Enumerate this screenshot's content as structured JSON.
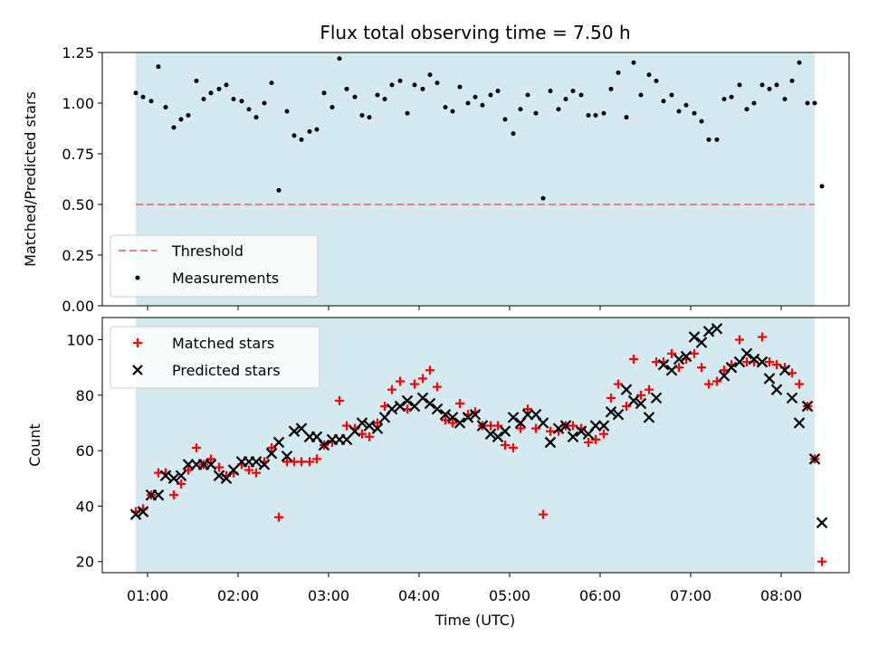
{
  "chart_data": [
    {
      "type": "scatter",
      "title": "Flux total observing time = 7.50 h",
      "xlabel": "",
      "ylabel": "Matched/Predicted stars",
      "ylim": [
        0,
        1.25
      ],
      "xlim_hours": [
        0.5,
        8.75
      ],
      "yticks": [
        "0.00",
        "0.25",
        "0.50",
        "0.75",
        "1.00",
        "1.25"
      ],
      "shaded_span_hours": [
        0.87,
        8.37
      ],
      "shade_color": "#d4eaf0",
      "threshold": {
        "name": "Threshold",
        "value": 0.5,
        "color": "#f08080"
      },
      "legend_placement": "lower-left",
      "series": [
        {
          "name": "Measurements",
          "marker": "dot",
          "color": "#000000",
          "points": [
            [
              0.87,
              1.05
            ],
            [
              0.95,
              1.03
            ],
            [
              1.04,
              1.01
            ],
            [
              1.12,
              1.18
            ],
            [
              1.2,
              0.98
            ],
            [
              1.29,
              0.88
            ],
            [
              1.37,
              0.92
            ],
            [
              1.45,
              0.94
            ],
            [
              1.54,
              1.11
            ],
            [
              1.62,
              1.02
            ],
            [
              1.7,
              1.05
            ],
            [
              1.79,
              1.07
            ],
            [
              1.87,
              1.09
            ],
            [
              1.95,
              1.02
            ],
            [
              2.04,
              1.01
            ],
            [
              2.12,
              0.97
            ],
            [
              2.2,
              0.93
            ],
            [
              2.29,
              1.0
            ],
            [
              2.37,
              1.1
            ],
            [
              2.45,
              0.57
            ],
            [
              2.54,
              0.96
            ],
            [
              2.62,
              0.84
            ],
            [
              2.7,
              0.82
            ],
            [
              2.79,
              0.86
            ],
            [
              2.87,
              0.87
            ],
            [
              2.95,
              1.05
            ],
            [
              3.04,
              0.98
            ],
            [
              3.12,
              1.22
            ],
            [
              3.2,
              1.07
            ],
            [
              3.29,
              1.03
            ],
            [
              3.37,
              0.94
            ],
            [
              3.45,
              0.93
            ],
            [
              3.54,
              1.04
            ],
            [
              3.62,
              1.02
            ],
            [
              3.7,
              1.09
            ],
            [
              3.79,
              1.11
            ],
            [
              3.87,
              0.95
            ],
            [
              3.95,
              1.09
            ],
            [
              4.04,
              1.07
            ],
            [
              4.12,
              1.14
            ],
            [
              4.2,
              1.1
            ],
            [
              4.29,
              0.98
            ],
            [
              4.37,
              0.96
            ],
            [
              4.45,
              1.08
            ],
            [
              4.54,
              1.0
            ],
            [
              4.62,
              1.03
            ],
            [
              4.7,
              0.99
            ],
            [
              4.79,
              1.04
            ],
            [
              4.87,
              1.06
            ],
            [
              4.95,
              0.92
            ],
            [
              5.04,
              0.85
            ],
            [
              5.12,
              0.97
            ],
            [
              5.2,
              1.04
            ],
            [
              5.29,
              0.95
            ],
            [
              5.37,
              0.53
            ],
            [
              5.45,
              1.06
            ],
            [
              5.54,
              0.97
            ],
            [
              5.62,
              1.02
            ],
            [
              5.7,
              1.06
            ],
            [
              5.79,
              1.04
            ],
            [
              5.87,
              0.94
            ],
            [
              5.95,
              0.94
            ],
            [
              6.04,
              0.95
            ],
            [
              6.12,
              1.07
            ],
            [
              6.2,
              1.15
            ],
            [
              6.29,
              0.93
            ],
            [
              6.37,
              1.2
            ],
            [
              6.45,
              1.04
            ],
            [
              6.54,
              1.14
            ],
            [
              6.62,
              1.11
            ],
            [
              6.7,
              1.01
            ],
            [
              6.79,
              1.04
            ],
            [
              6.87,
              0.96
            ],
            [
              6.95,
              0.99
            ],
            [
              7.04,
              0.95
            ],
            [
              7.12,
              0.91
            ],
            [
              7.2,
              0.82
            ],
            [
              7.29,
              0.82
            ],
            [
              7.37,
              1.02
            ],
            [
              7.45,
              1.03
            ],
            [
              7.54,
              1.09
            ],
            [
              7.62,
              0.97
            ],
            [
              7.7,
              1.0
            ],
            [
              7.79,
              1.09
            ],
            [
              7.87,
              1.07
            ],
            [
              7.95,
              1.09
            ],
            [
              8.04,
              1.02
            ],
            [
              8.12,
              1.11
            ],
            [
              8.2,
              1.2
            ],
            [
              8.29,
              1.0
            ],
            [
              8.37,
              1.0
            ],
            [
              8.45,
              0.59
            ]
          ]
        }
      ]
    },
    {
      "type": "scatter",
      "title": "",
      "xlabel": "Time (UTC)",
      "ylabel": "Count",
      "ylim": [
        16,
        108
      ],
      "yticks": [
        20,
        40,
        60,
        80,
        100
      ],
      "xticks": [
        "01:00",
        "02:00",
        "03:00",
        "04:00",
        "05:00",
        "06:00",
        "07:00",
        "08:00"
      ],
      "legend_placement": "upper-left",
      "series": [
        {
          "name": "Matched stars",
          "marker": "plus",
          "color": "#ff0000",
          "points": [
            [
              0.87,
              38
            ],
            [
              0.95,
              39
            ],
            [
              1.04,
              44
            ],
            [
              1.12,
              52
            ],
            [
              1.2,
              52
            ],
            [
              1.29,
              44
            ],
            [
              1.37,
              48
            ],
            [
              1.45,
              53
            ],
            [
              1.54,
              61
            ],
            [
              1.62,
              55
            ],
            [
              1.7,
              57
            ],
            [
              1.79,
              54
            ],
            [
              1.87,
              51
            ],
            [
              1.95,
              52
            ],
            [
              2.04,
              55
            ],
            [
              2.12,
              53
            ],
            [
              2.2,
              52
            ],
            [
              2.29,
              56
            ],
            [
              2.37,
              61
            ],
            [
              2.45,
              36
            ],
            [
              2.54,
              56
            ],
            [
              2.62,
              56
            ],
            [
              2.7,
              56
            ],
            [
              2.79,
              56
            ],
            [
              2.87,
              57
            ],
            [
              2.95,
              62
            ],
            [
              3.04,
              63
            ],
            [
              3.12,
              78
            ],
            [
              3.2,
              69
            ],
            [
              3.29,
              68
            ],
            [
              3.37,
              66
            ],
            [
              3.45,
              65
            ],
            [
              3.54,
              70
            ],
            [
              3.62,
              76
            ],
            [
              3.7,
              82
            ],
            [
              3.79,
              85
            ],
            [
              3.87,
              75
            ],
            [
              3.95,
              84
            ],
            [
              4.04,
              86
            ],
            [
              4.12,
              89
            ],
            [
              4.2,
              83
            ],
            [
              4.29,
              71
            ],
            [
              4.37,
              70
            ],
            [
              4.45,
              77
            ],
            [
              4.54,
              73
            ],
            [
              4.62,
              74
            ],
            [
              4.7,
              69
            ],
            [
              4.79,
              69
            ],
            [
              4.87,
              69
            ],
            [
              4.95,
              62
            ],
            [
              5.04,
              61
            ],
            [
              5.12,
              68
            ],
            [
              5.2,
              75
            ],
            [
              5.29,
              68
            ],
            [
              5.37,
              37
            ],
            [
              5.45,
              67
            ],
            [
              5.54,
              67
            ],
            [
              5.62,
              69
            ],
            [
              5.7,
              69
            ],
            [
              5.79,
              68
            ],
            [
              5.87,
              63
            ],
            [
              5.95,
              64
            ],
            [
              6.04,
              66
            ],
            [
              6.12,
              79
            ],
            [
              6.2,
              84
            ],
            [
              6.29,
              76
            ],
            [
              6.37,
              93
            ],
            [
              6.45,
              80
            ],
            [
              6.54,
              82
            ],
            [
              6.62,
              92
            ],
            [
              6.7,
              92
            ],
            [
              6.79,
              95
            ],
            [
              6.87,
              90
            ],
            [
              6.95,
              93
            ],
            [
              7.04,
              95
            ],
            [
              7.12,
              90
            ],
            [
              7.2,
              84
            ],
            [
              7.29,
              85
            ],
            [
              7.37,
              89
            ],
            [
              7.45,
              91
            ],
            [
              7.54,
              100
            ],
            [
              7.62,
              92
            ],
            [
              7.7,
              92
            ],
            [
              7.79,
              101
            ],
            [
              7.87,
              92
            ],
            [
              7.95,
              91
            ],
            [
              8.04,
              90
            ],
            [
              8.12,
              88
            ],
            [
              8.2,
              84
            ],
            [
              8.29,
              76
            ],
            [
              8.37,
              57
            ],
            [
              8.45,
              20
            ]
          ]
        },
        {
          "name": "Predicted stars",
          "marker": "x",
          "color": "#000000",
          "points": [
            [
              0.87,
              37
            ],
            [
              0.95,
              38
            ],
            [
              1.04,
              44
            ],
            [
              1.12,
              44
            ],
            [
              1.2,
              51
            ],
            [
              1.29,
              50
            ],
            [
              1.37,
              51
            ],
            [
              1.45,
              55
            ],
            [
              1.54,
              55
            ],
            [
              1.62,
              55
            ],
            [
              1.7,
              55
            ],
            [
              1.79,
              51
            ],
            [
              1.87,
              50
            ],
            [
              1.95,
              53
            ],
            [
              2.04,
              56
            ],
            [
              2.12,
              56
            ],
            [
              2.2,
              56
            ],
            [
              2.29,
              55
            ],
            [
              2.37,
              59
            ],
            [
              2.45,
              63
            ],
            [
              2.54,
              58
            ],
            [
              2.62,
              67
            ],
            [
              2.7,
              68
            ],
            [
              2.79,
              65
            ],
            [
              2.87,
              65
            ],
            [
              2.95,
              62
            ],
            [
              3.04,
              64
            ],
            [
              3.12,
              64
            ],
            [
              3.2,
              64
            ],
            [
              3.29,
              67
            ],
            [
              3.37,
              70
            ],
            [
              3.45,
              69
            ],
            [
              3.54,
              68
            ],
            [
              3.62,
              72
            ],
            [
              3.7,
              75
            ],
            [
              3.79,
              76
            ],
            [
              3.87,
              78
            ],
            [
              3.95,
              76
            ],
            [
              4.04,
              79
            ],
            [
              4.12,
              77
            ],
            [
              4.2,
              75
            ],
            [
              4.29,
              73
            ],
            [
              4.37,
              72
            ],
            [
              4.45,
              70
            ],
            [
              4.54,
              72
            ],
            [
              4.62,
              73
            ],
            [
              4.7,
              69
            ],
            [
              4.79,
              66
            ],
            [
              4.87,
              65
            ],
            [
              4.95,
              67
            ],
            [
              5.04,
              72
            ],
            [
              5.12,
              70
            ],
            [
              5.2,
              73
            ],
            [
              5.29,
              73
            ],
            [
              5.37,
              70
            ],
            [
              5.45,
              63
            ],
            [
              5.54,
              68
            ],
            [
              5.62,
              69
            ],
            [
              5.7,
              65
            ],
            [
              5.79,
              67
            ],
            [
              5.87,
              66
            ],
            [
              5.95,
              69
            ],
            [
              6.04,
              69
            ],
            [
              6.12,
              74
            ],
            [
              6.2,
              73
            ],
            [
              6.29,
              82
            ],
            [
              6.37,
              78
            ],
            [
              6.45,
              77
            ],
            [
              6.54,
              72
            ],
            [
              6.62,
              79
            ],
            [
              6.7,
              91
            ],
            [
              6.79,
              89
            ],
            [
              6.87,
              93
            ],
            [
              6.95,
              94
            ],
            [
              7.04,
              101
            ],
            [
              7.12,
              99
            ],
            [
              7.2,
              103
            ],
            [
              7.29,
              104
            ],
            [
              7.37,
              87
            ],
            [
              7.45,
              90
            ],
            [
              7.54,
              92
            ],
            [
              7.62,
              95
            ],
            [
              7.7,
              93
            ],
            [
              7.79,
              92
            ],
            [
              7.87,
              86
            ],
            [
              7.95,
              82
            ],
            [
              8.04,
              89
            ],
            [
              8.12,
              79
            ],
            [
              8.2,
              70
            ],
            [
              8.29,
              76
            ],
            [
              8.37,
              57
            ],
            [
              8.45,
              34
            ]
          ]
        }
      ]
    }
  ]
}
